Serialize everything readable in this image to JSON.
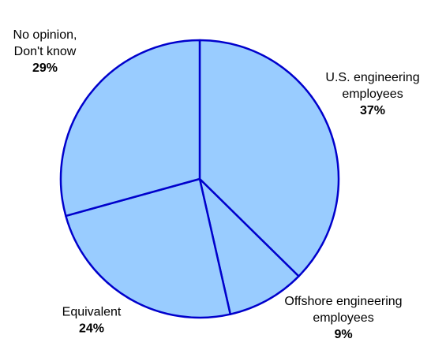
{
  "chart_data": {
    "type": "pie",
    "title": "",
    "slices": [
      {
        "label_lines": [
          "U.S. engineering",
          "employees"
        ],
        "value": 37,
        "value_label": "37%"
      },
      {
        "label_lines": [
          "Offshore engineering",
          "employees"
        ],
        "value": 9,
        "value_label": "9%"
      },
      {
        "label_lines": [
          "Equivalent"
        ],
        "value": 24,
        "value_label": "24%"
      },
      {
        "label_lines": [
          "No opinion,",
          "Don't know"
        ],
        "value": 29,
        "value_label": "29%"
      }
    ],
    "start_direction": "top",
    "direction": "clockwise",
    "legend": "none",
    "colors": {
      "fill": "#99ccff",
      "stroke": "#0000cc"
    }
  }
}
